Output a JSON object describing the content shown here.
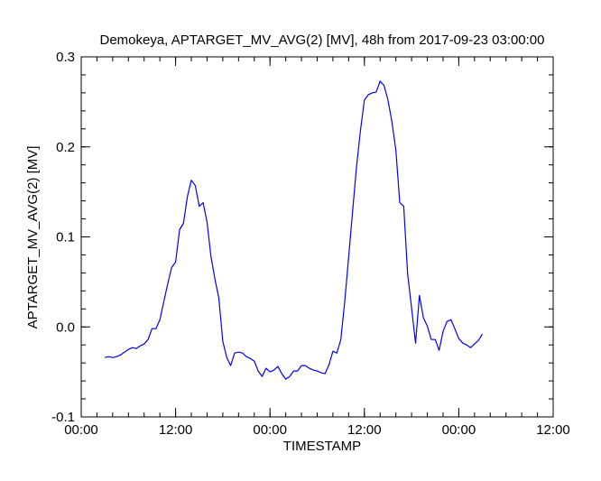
{
  "chart_data": {
    "type": "line",
    "title": "Demokeya, APTARGET_MV_AVG(2) [MV], 48h from  2017-09-23 03:00:00",
    "xlabel": "TIMESTAMP",
    "ylabel": "APTARGET_MV_AVG(2) [MV]",
    "xlim": [
      "2017-09-23 00:00",
      "2017-09-25 12:00"
    ],
    "ylim": [
      -0.1,
      0.3
    ],
    "x_ticks": [
      "00:00",
      "12:00",
      "00:00",
      "12:00",
      "00:00",
      "12:00"
    ],
    "y_ticks": [
      "-0.1",
      "0.0",
      "0.1",
      "0.2",
      "0.3"
    ],
    "grid": false,
    "series": [
      {
        "color": "#0000ff",
        "x": [
          "2017-09-23 03:00",
          "2017-09-23 03:30",
          "2017-09-23 04:00",
          "2017-09-23 04:30",
          "2017-09-23 05:00",
          "2017-09-23 05:30",
          "2017-09-23 06:00",
          "2017-09-23 06:30",
          "2017-09-23 07:00",
          "2017-09-23 07:30",
          "2017-09-23 08:00",
          "2017-09-23 08:30",
          "2017-09-23 09:00",
          "2017-09-23 09:30",
          "2017-09-23 10:00",
          "2017-09-23 10:30",
          "2017-09-23 11:00",
          "2017-09-23 11:30",
          "2017-09-23 12:00",
          "2017-09-23 12:30",
          "2017-09-23 13:00",
          "2017-09-23 13:30",
          "2017-09-23 14:00",
          "2017-09-23 14:30",
          "2017-09-23 15:00",
          "2017-09-23 15:30",
          "2017-09-23 16:00",
          "2017-09-23 16:30",
          "2017-09-23 17:00",
          "2017-09-23 17:30",
          "2017-09-23 18:00",
          "2017-09-23 18:30",
          "2017-09-23 19:00",
          "2017-09-23 19:30",
          "2017-09-23 20:00",
          "2017-09-23 20:30",
          "2017-09-23 21:00",
          "2017-09-23 21:30",
          "2017-09-23 22:00",
          "2017-09-23 22:30",
          "2017-09-23 23:00",
          "2017-09-23 23:30",
          "2017-09-24 00:00",
          "2017-09-24 00:30",
          "2017-09-24 01:00",
          "2017-09-24 01:30",
          "2017-09-24 02:00",
          "2017-09-24 02:30",
          "2017-09-24 03:00",
          "2017-09-24 03:30",
          "2017-09-24 04:00",
          "2017-09-24 04:30",
          "2017-09-24 05:00",
          "2017-09-24 05:30",
          "2017-09-24 06:00",
          "2017-09-24 06:30",
          "2017-09-24 07:00",
          "2017-09-24 07:30",
          "2017-09-24 08:00",
          "2017-09-24 08:30",
          "2017-09-24 09:00",
          "2017-09-24 09:30",
          "2017-09-24 10:00",
          "2017-09-24 10:30",
          "2017-09-24 11:00",
          "2017-09-24 11:30",
          "2017-09-24 12:00",
          "2017-09-24 12:30",
          "2017-09-24 13:00",
          "2017-09-24 13:30",
          "2017-09-24 14:00",
          "2017-09-24 14:30",
          "2017-09-24 15:00",
          "2017-09-24 15:30",
          "2017-09-24 16:00",
          "2017-09-24 16:30",
          "2017-09-24 17:00",
          "2017-09-24 17:30",
          "2017-09-24 18:00",
          "2017-09-24 18:30",
          "2017-09-24 19:00",
          "2017-09-24 19:30",
          "2017-09-24 20:00",
          "2017-09-24 20:30",
          "2017-09-24 21:00",
          "2017-09-24 21:30",
          "2017-09-24 22:00",
          "2017-09-24 22:30",
          "2017-09-24 23:00",
          "2017-09-24 23:30",
          "2017-09-25 00:00",
          "2017-09-25 00:30",
          "2017-09-25 01:00",
          "2017-09-25 01:30",
          "2017-09-25 02:00",
          "2017-09-25 02:30",
          "2017-09-25 03:00"
        ],
        "y": [
          -0.034,
          -0.033,
          -0.034,
          -0.033,
          -0.031,
          -0.028,
          -0.025,
          -0.023,
          -0.024,
          -0.021,
          -0.019,
          -0.014,
          -0.002,
          -0.002,
          0.008,
          0.028,
          0.048,
          0.066,
          0.072,
          0.108,
          0.115,
          0.145,
          0.163,
          0.157,
          0.134,
          0.138,
          0.116,
          0.078,
          0.053,
          0.032,
          -0.016,
          -0.034,
          -0.043,
          -0.029,
          -0.028,
          -0.029,
          -0.033,
          -0.035,
          -0.038,
          -0.049,
          -0.055,
          -0.046,
          -0.05,
          -0.048,
          -0.044,
          -0.052,
          -0.058,
          -0.055,
          -0.049,
          -0.049,
          -0.043,
          -0.043,
          -0.046,
          -0.048,
          -0.049,
          -0.051,
          -0.052,
          -0.042,
          -0.027,
          -0.029,
          -0.014,
          0.028,
          0.078,
          0.128,
          0.178,
          0.218,
          0.252,
          0.258,
          0.26,
          0.261,
          0.273,
          0.268,
          0.252,
          0.228,
          0.196,
          0.138,
          0.134,
          0.059,
          0.021,
          -0.018,
          0.035,
          0.01,
          0.001,
          -0.014,
          -0.014,
          -0.026,
          -0.005,
          0.006,
          0.008,
          -0.002,
          -0.013,
          -0.018,
          -0.02,
          -0.023,
          -0.019,
          -0.015,
          -0.008
        ]
      }
    ]
  }
}
